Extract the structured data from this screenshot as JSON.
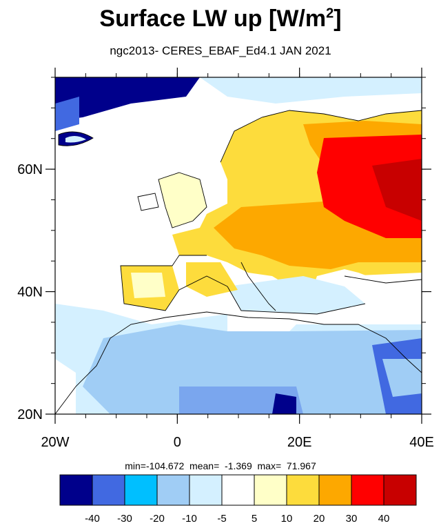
{
  "title_text": "Surface LW up [W/m",
  "title_sup": "2",
  "title_close": "]",
  "subtitle": "ngc2013- CERES_EBAF_Ed4.1 JAN 2021",
  "stats": {
    "min_label": "min=",
    "min": "-104.672",
    "mean_label": "mean=",
    "mean": "-1.369",
    "max_label": "max=",
    "max": "71.967"
  },
  "axes": {
    "lon_ticks": [
      {
        "value": -20,
        "label": "20W"
      },
      {
        "value": 0,
        "label": "0"
      },
      {
        "value": 20,
        "label": "20E"
      },
      {
        "value": 40,
        "label": "40E"
      }
    ],
    "lat_ticks": [
      {
        "value": 20,
        "label": "20N"
      },
      {
        "value": 40,
        "label": "40N"
      },
      {
        "value": 60,
        "label": "60N"
      }
    ],
    "lon_range": [
      -20,
      40
    ],
    "lat_range": [
      20,
      75
    ]
  },
  "colorbar": {
    "colors": [
      "#00008b",
      "#4169e1",
      "#00bfff",
      "#a0cdf5",
      "#d4f0ff",
      "#ffffff",
      "#ffffc8",
      "#fddc3c",
      "#fda800",
      "#ff0000",
      "#c80000"
    ],
    "labels": [
      "-40",
      "-30",
      "-20",
      "-10",
      "-5",
      "5",
      "10",
      "20",
      "30",
      "40"
    ]
  }
}
